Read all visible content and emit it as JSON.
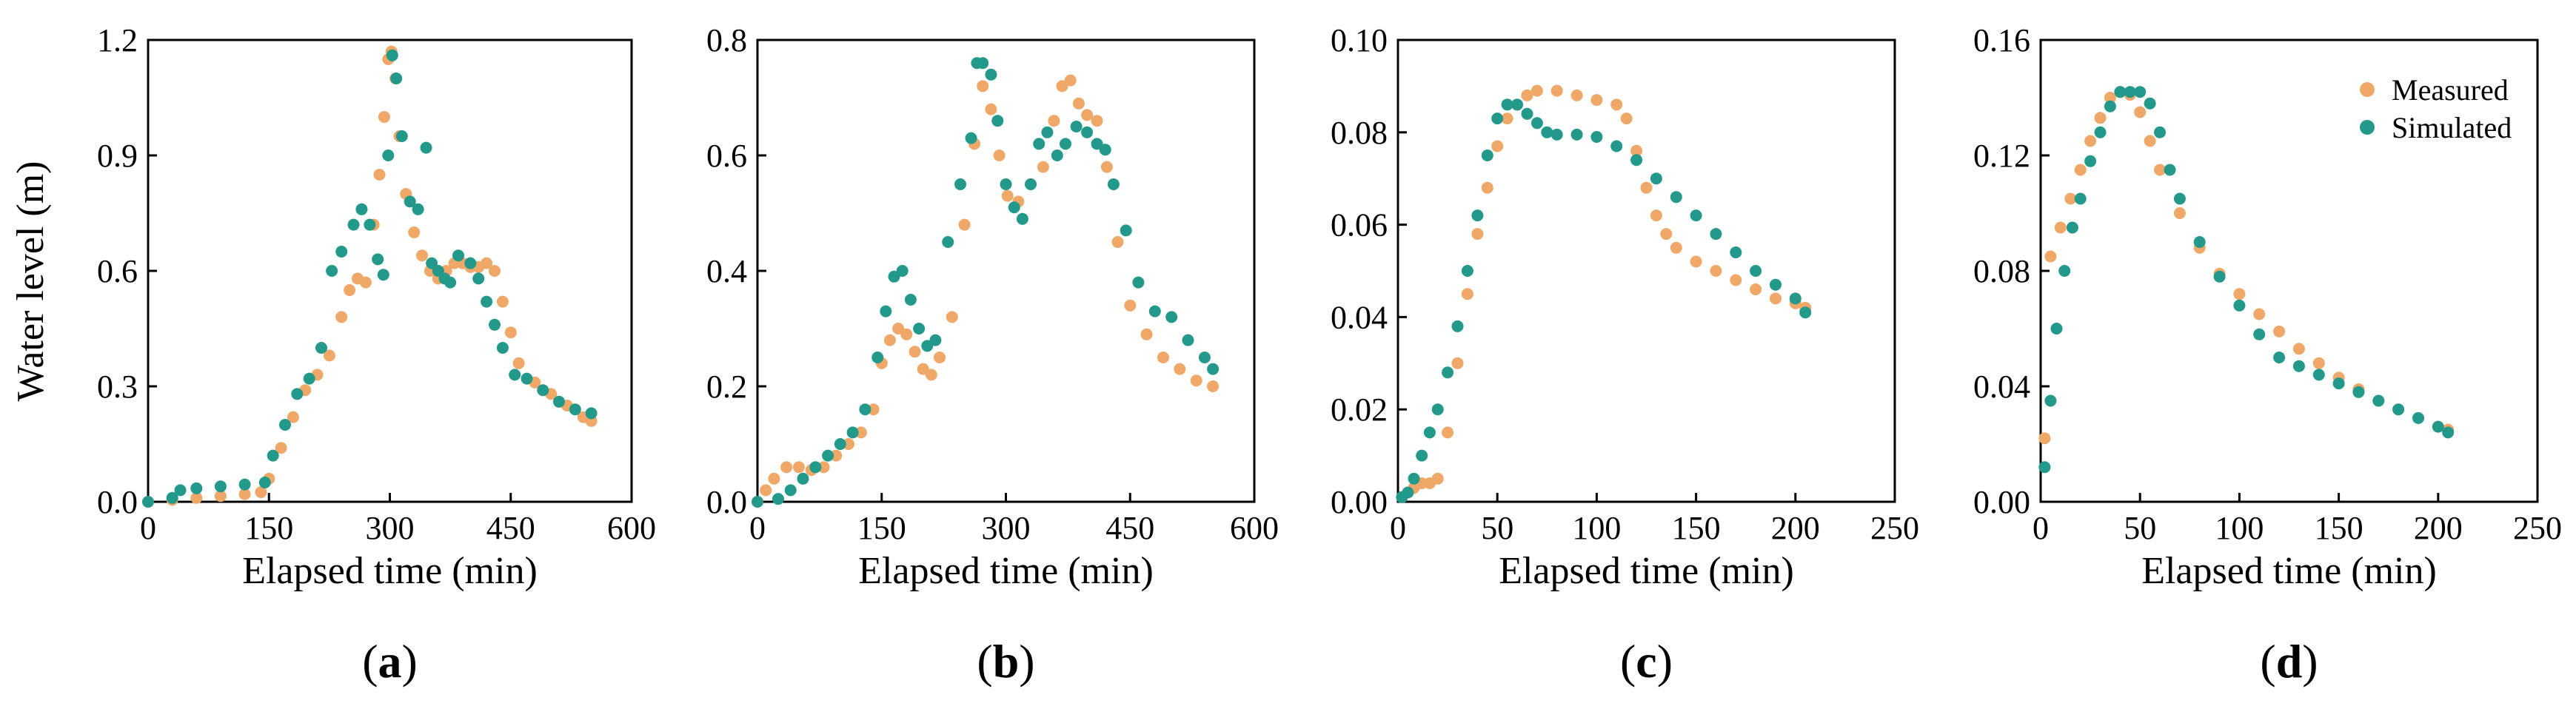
{
  "colors": {
    "measured": "#F0A868",
    "simulated": "#22998A"
  },
  "legend": {
    "measured": "Measured",
    "simulated": "Simulated"
  },
  "chart_data": [
    {
      "type": "scatter",
      "panel_label": "a",
      "xlabel": "Elapsed time (min)",
      "ylabel": "Water level (m)",
      "xlim": [
        0,
        600
      ],
      "ylim": [
        0,
        1.2
      ],
      "xticks": [
        "0",
        "150",
        "300",
        "450",
        "600"
      ],
      "yticks": [
        "0.0",
        "0.3",
        "0.6",
        "0.9",
        "1.2"
      ],
      "series": [
        {
          "name": "Measured",
          "x": [
            0,
            30,
            60,
            90,
            120,
            140,
            150,
            165,
            180,
            195,
            210,
            225,
            240,
            250,
            260,
            270,
            280,
            287,
            293,
            298,
            302,
            307,
            312,
            320,
            330,
            340,
            350,
            360,
            370,
            380,
            390,
            400,
            410,
            420,
            430,
            440,
            450,
            460,
            480,
            500,
            520,
            540,
            550
          ],
          "values": [
            0.0,
            0.005,
            0.01,
            0.015,
            0.02,
            0.025,
            0.06,
            0.14,
            0.22,
            0.29,
            0.33,
            0.38,
            0.48,
            0.55,
            0.58,
            0.57,
            0.72,
            0.85,
            1.0,
            1.15,
            1.17,
            1.1,
            0.95,
            0.8,
            0.7,
            0.64,
            0.6,
            0.58,
            0.6,
            0.62,
            0.62,
            0.61,
            0.61,
            0.62,
            0.6,
            0.52,
            0.44,
            0.36,
            0.31,
            0.28,
            0.25,
            0.22,
            0.21
          ]
        },
        {
          "name": "Simulated",
          "x": [
            0,
            30,
            40,
            60,
            90,
            120,
            145,
            155,
            170,
            185,
            200,
            215,
            228,
            240,
            255,
            265,
            275,
            285,
            292,
            298,
            303,
            308,
            315,
            325,
            335,
            345,
            352,
            360,
            368,
            375,
            385,
            400,
            410,
            420,
            430,
            440,
            455,
            470,
            490,
            510,
            530,
            550
          ],
          "values": [
            0.0,
            0.01,
            0.03,
            0.035,
            0.04,
            0.045,
            0.05,
            0.12,
            0.2,
            0.28,
            0.32,
            0.4,
            0.6,
            0.65,
            0.72,
            0.76,
            0.72,
            0.63,
            0.59,
            0.9,
            1.16,
            1.1,
            0.95,
            0.78,
            0.76,
            0.92,
            0.62,
            0.6,
            0.58,
            0.57,
            0.64,
            0.62,
            0.58,
            0.52,
            0.46,
            0.4,
            0.33,
            0.32,
            0.29,
            0.26,
            0.24,
            0.23
          ]
        }
      ]
    },
    {
      "type": "scatter",
      "panel_label": "b",
      "xlabel": "Elapsed time (min)",
      "ylabel": "",
      "xlim": [
        0,
        600
      ],
      "ylim": [
        0,
        0.8
      ],
      "xticks": [
        "0",
        "150",
        "300",
        "450",
        "600"
      ],
      "yticks": [
        "0.0",
        "0.2",
        "0.4",
        "0.6",
        "0.8"
      ],
      "series": [
        {
          "name": "Measured",
          "x": [
            0,
            10,
            20,
            35,
            50,
            65,
            80,
            95,
            110,
            125,
            140,
            150,
            160,
            170,
            180,
            190,
            200,
            210,
            220,
            235,
            250,
            262,
            272,
            282,
            292,
            302,
            315,
            330,
            345,
            358,
            368,
            378,
            388,
            398,
            410,
            422,
            435,
            450,
            470,
            490,
            510,
            530,
            550
          ],
          "values": [
            0.0,
            0.02,
            0.04,
            0.06,
            0.06,
            0.055,
            0.06,
            0.08,
            0.1,
            0.12,
            0.16,
            0.24,
            0.28,
            0.3,
            0.29,
            0.26,
            0.23,
            0.22,
            0.25,
            0.32,
            0.48,
            0.62,
            0.72,
            0.68,
            0.6,
            0.53,
            0.52,
            0.55,
            0.58,
            0.66,
            0.72,
            0.73,
            0.69,
            0.67,
            0.66,
            0.58,
            0.45,
            0.34,
            0.29,
            0.25,
            0.23,
            0.21,
            0.2
          ]
        },
        {
          "name": "Simulated",
          "x": [
            0,
            25,
            40,
            55,
            70,
            85,
            100,
            115,
            130,
            145,
            155,
            165,
            175,
            185,
            195,
            205,
            215,
            230,
            245,
            258,
            265,
            272,
            282,
            290,
            300,
            310,
            320,
            330,
            340,
            350,
            362,
            372,
            385,
            398,
            410,
            420,
            430,
            445,
            460,
            480,
            500,
            520,
            540,
            550
          ],
          "values": [
            0.0,
            0.005,
            0.02,
            0.04,
            0.06,
            0.08,
            0.1,
            0.12,
            0.16,
            0.25,
            0.33,
            0.39,
            0.4,
            0.35,
            0.3,
            0.27,
            0.28,
            0.45,
            0.55,
            0.63,
            0.76,
            0.76,
            0.74,
            0.66,
            0.55,
            0.51,
            0.49,
            0.55,
            0.62,
            0.64,
            0.6,
            0.62,
            0.65,
            0.64,
            0.62,
            0.61,
            0.55,
            0.47,
            0.38,
            0.33,
            0.32,
            0.28,
            0.25,
            0.23
          ]
        }
      ]
    },
    {
      "type": "scatter",
      "panel_label": "c",
      "xlabel": "Elapsed time (min)",
      "ylabel": "",
      "xlim": [
        0,
        250
      ],
      "ylim": [
        0,
        0.1
      ],
      "xticks": [
        "0",
        "50",
        "100",
        "150",
        "200",
        "250"
      ],
      "yticks": [
        "0.00",
        "0.02",
        "0.04",
        "0.06",
        "0.08",
        "0.10"
      ],
      "series": [
        {
          "name": "Measured",
          "x": [
            2,
            5,
            8,
            12,
            16,
            20,
            25,
            30,
            35,
            40,
            45,
            50,
            55,
            60,
            65,
            70,
            80,
            90,
            100,
            110,
            115,
            120,
            125,
            130,
            135,
            140,
            150,
            160,
            170,
            180,
            190,
            200,
            205
          ],
          "values": [
            0.001,
            0.002,
            0.003,
            0.004,
            0.004,
            0.005,
            0.015,
            0.03,
            0.045,
            0.058,
            0.068,
            0.077,
            0.083,
            0.086,
            0.088,
            0.089,
            0.089,
            0.088,
            0.087,
            0.086,
            0.083,
            0.076,
            0.068,
            0.062,
            0.058,
            0.055,
            0.052,
            0.05,
            0.048,
            0.046,
            0.044,
            0.043,
            0.042
          ]
        },
        {
          "name": "Simulated",
          "x": [
            2,
            5,
            8,
            12,
            16,
            20,
            25,
            30,
            35,
            40,
            45,
            50,
            55,
            60,
            65,
            70,
            75,
            80,
            90,
            100,
            110,
            120,
            130,
            140,
            150,
            160,
            170,
            180,
            190,
            200,
            205
          ],
          "values": [
            0.001,
            0.002,
            0.005,
            0.01,
            0.015,
            0.02,
            0.028,
            0.038,
            0.05,
            0.062,
            0.075,
            0.083,
            0.086,
            0.086,
            0.084,
            0.082,
            0.08,
            0.0795,
            0.0795,
            0.079,
            0.077,
            0.074,
            0.07,
            0.066,
            0.062,
            0.058,
            0.054,
            0.05,
            0.047,
            0.044,
            0.041
          ]
        }
      ]
    },
    {
      "type": "scatter",
      "panel_label": "d",
      "xlabel": "Elapsed time (min)",
      "ylabel": "",
      "xlim": [
        0,
        250
      ],
      "ylim": [
        0,
        0.16
      ],
      "xticks": [
        "0",
        "50",
        "100",
        "150",
        "200",
        "250"
      ],
      "yticks": [
        "0.00",
        "0.04",
        "0.08",
        "0.12",
        "0.16"
      ],
      "series": [
        {
          "name": "Measured",
          "x": [
            2,
            5,
            10,
            15,
            20,
            25,
            30,
            35,
            40,
            45,
            50,
            55,
            60,
            70,
            80,
            90,
            100,
            110,
            120,
            130,
            140,
            150,
            160,
            170,
            180,
            190,
            200,
            205
          ],
          "values": [
            0.022,
            0.085,
            0.095,
            0.105,
            0.115,
            0.125,
            0.133,
            0.14,
            0.142,
            0.141,
            0.135,
            0.125,
            0.115,
            0.1,
            0.088,
            0.079,
            0.072,
            0.065,
            0.059,
            0.053,
            0.048,
            0.043,
            0.039,
            0.035,
            0.032,
            0.029,
            0.026,
            0.025
          ]
        },
        {
          "name": "Simulated",
          "x": [
            2,
            5,
            8,
            12,
            16,
            20,
            25,
            30,
            35,
            40,
            45,
            50,
            55,
            60,
            65,
            70,
            80,
            90,
            100,
            110,
            120,
            130,
            140,
            150,
            160,
            170,
            180,
            190,
            200,
            205
          ],
          "values": [
            0.012,
            0.035,
            0.06,
            0.08,
            0.095,
            0.105,
            0.118,
            0.128,
            0.137,
            0.142,
            0.142,
            0.142,
            0.138,
            0.128,
            0.115,
            0.105,
            0.09,
            0.078,
            0.068,
            0.058,
            0.05,
            0.047,
            0.044,
            0.041,
            0.038,
            0.035,
            0.032,
            0.029,
            0.026,
            0.024
          ]
        }
      ]
    }
  ]
}
